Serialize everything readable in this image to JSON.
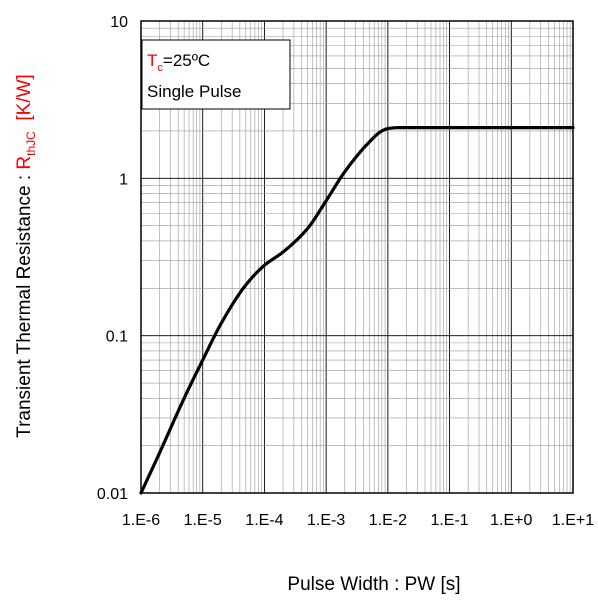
{
  "chart_data": {
    "type": "line",
    "scale": {
      "x": "log",
      "y": "log"
    },
    "x": {
      "label": "Pulse Width : PW [s]",
      "range": [
        1e-06,
        10
      ],
      "ticks": [
        {
          "value": 1e-06,
          "label": "1.E-6"
        },
        {
          "value": 1e-05,
          "label": "1.E-5"
        },
        {
          "value": 0.0001,
          "label": "1.E-4"
        },
        {
          "value": 0.001,
          "label": "1.E-3"
        },
        {
          "value": 0.01,
          "label": "1.E-2"
        },
        {
          "value": 0.1,
          "label": "1.E-1"
        },
        {
          "value": 1,
          "label": "1.E+0"
        },
        {
          "value": 10,
          "label": "1.E+1"
        }
      ]
    },
    "y": {
      "label_prefix": "Transient Thermal Resistance : ",
      "label_symbol": "R",
      "label_subscript": "thJC",
      "label_unit": "[K/W]",
      "range": [
        0.01,
        10
      ],
      "ticks": [
        {
          "value": 0.01,
          "label": "0.01"
        },
        {
          "value": 0.1,
          "label": "0.1"
        },
        {
          "value": 1,
          "label": "1"
        },
        {
          "value": 10,
          "label": "10"
        }
      ]
    },
    "grid": true,
    "annotation": {
      "line1_symbol": "T",
      "line1_subscript": "c",
      "line1_rest": "=25ºC",
      "line2": "Single Pulse"
    },
    "series": [
      {
        "x": [
          1e-06,
          2e-06,
          5e-06,
          1e-05,
          2e-05,
          5e-05,
          0.0001,
          0.0002,
          0.0005,
          0.001,
          0.002,
          0.005,
          0.008,
          0.01,
          0.015,
          0.02,
          0.05,
          0.1,
          1,
          10
        ],
        "y": [
          0.01,
          0.018,
          0.04,
          0.07,
          0.12,
          0.21,
          0.28,
          0.34,
          0.48,
          0.72,
          1.1,
          1.7,
          2.0,
          2.07,
          2.1,
          2.1,
          2.1,
          2.1,
          2.1,
          2.1
        ]
      }
    ],
    "colors": {
      "accent": "#ff0000",
      "line": "#000000",
      "grid": "#999999",
      "grid_major": "#000000"
    }
  }
}
